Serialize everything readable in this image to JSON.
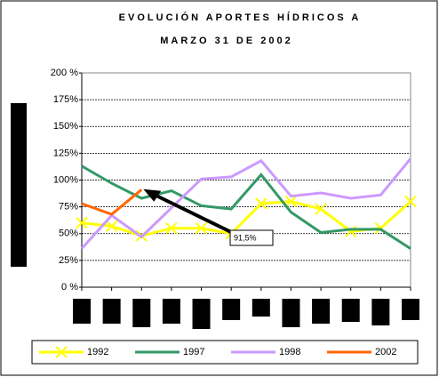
{
  "chart_data": {
    "type": "line",
    "title_lines": [
      "EVOLUCIÓN APORTES HÍDRICOS A",
      "MARZO 31 DE 2002"
    ],
    "categories": [
      null,
      null,
      null,
      null,
      null,
      null,
      null,
      null,
      null,
      null,
      null,
      null
    ],
    "series": [
      {
        "name": "1992",
        "color": "#ffff00",
        "marker": "x",
        "values": [
          60,
          57,
          48,
          55,
          55,
          50,
          78,
          80,
          73,
          52,
          55,
          80
        ]
      },
      {
        "name": "1997",
        "color": "#339966",
        "values": [
          113,
          97,
          83,
          90,
          76,
          73,
          105,
          70,
          51,
          54,
          54,
          36
        ]
      },
      {
        "name": "1998",
        "color": "#cc99ff",
        "values": [
          36,
          67,
          47,
          74,
          101,
          103,
          118,
          85,
          88,
          83,
          86,
          120
        ]
      },
      {
        "name": "2002",
        "color": "#ff6600",
        "values": [
          78,
          68,
          91,
          null,
          null,
          null,
          null,
          null,
          null,
          null,
          null,
          null
        ]
      }
    ],
    "ylim": [
      0,
      200
    ],
    "yticks": [
      {
        "value": 0,
        "label": "0 %"
      },
      {
        "value": 25,
        "label": "25%"
      },
      {
        "value": 50,
        "label": "50%"
      },
      {
        "value": 75,
        "label": "75%"
      },
      {
        "value": 100,
        "label": "100%"
      },
      {
        "value": 125,
        "label": "125%"
      },
      {
        "value": 150,
        "label": "150%"
      },
      {
        "value": 175,
        "label": "175%"
      },
      {
        "value": 200,
        "label": "200 %"
      }
    ],
    "grid": true,
    "annotation": {
      "text": "91,5%",
      "value": 91.5
    }
  }
}
